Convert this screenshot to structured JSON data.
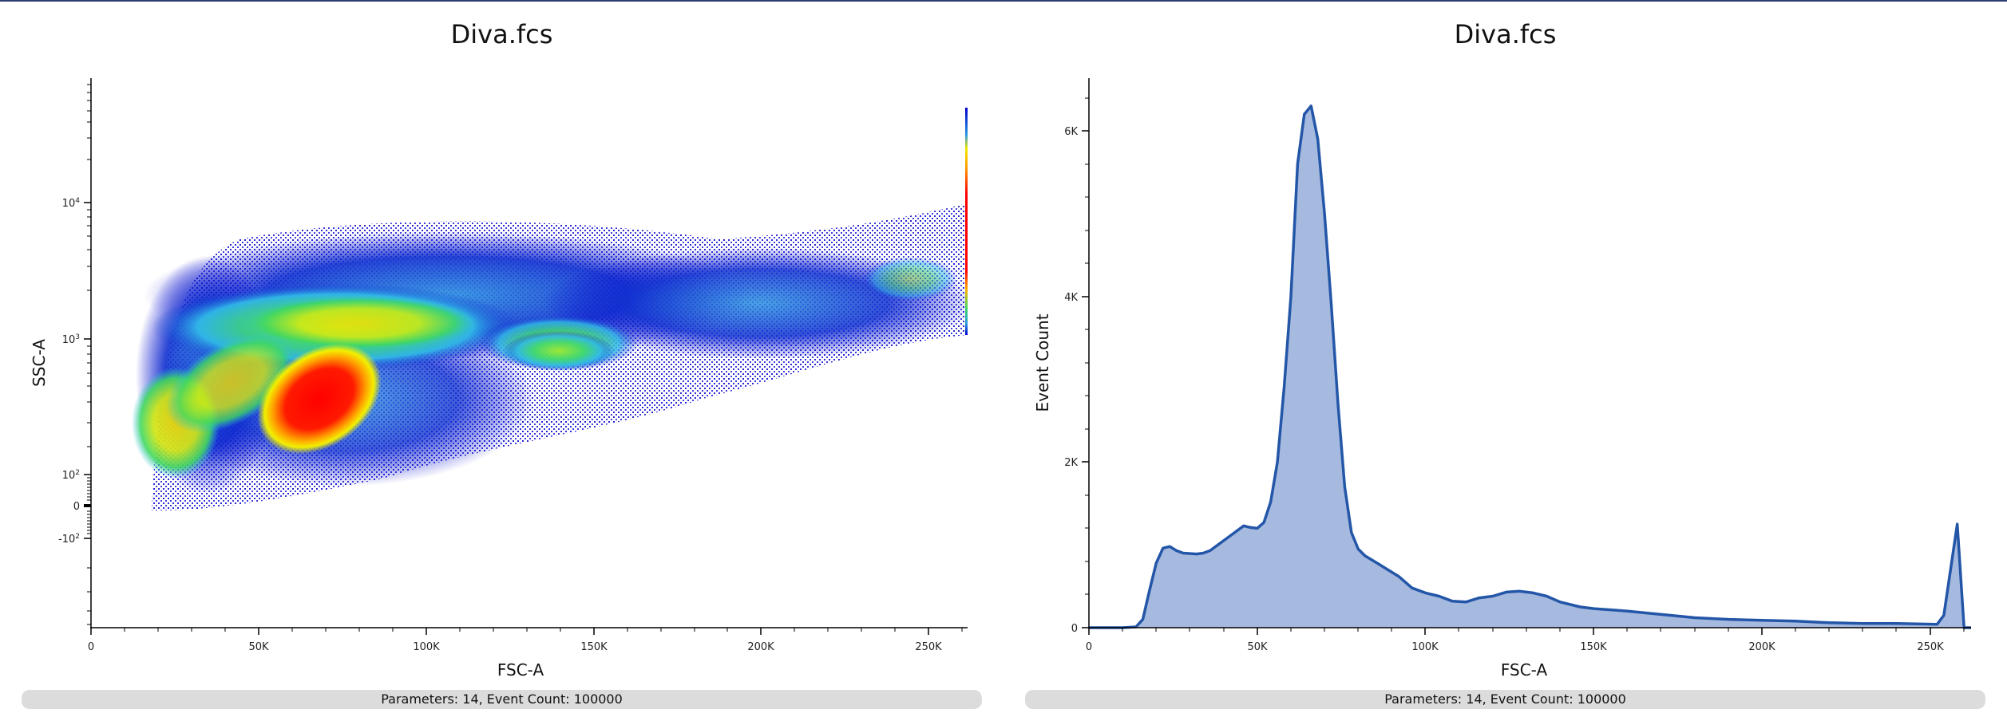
{
  "left_panel": {
    "title": "Diva.fcs",
    "status": "Parameters: 14, Event Count: 100000"
  },
  "right_panel": {
    "title": "Diva.fcs",
    "status": "Parameters: 14, Event Count: 100000"
  },
  "colors": {
    "header_line": "#2c3e73",
    "hist_line": "#2456a8",
    "hist_fill": "#a6badf",
    "status_bar": "#dcdcdc",
    "density": [
      "#0000cc",
      "#2fb4e8",
      "#33dd55",
      "#f0f000",
      "#ff9900",
      "#ff0000"
    ]
  },
  "chart_data": [
    {
      "type": "scatter",
      "title": "Diva.fcs",
      "xlabel": "FSC-A",
      "ylabel": "SSC-A",
      "x_scale": "linear",
      "y_scale": "biexponential",
      "x_ticks": [
        "0",
        "50K",
        "100K",
        "150K",
        "200K",
        "250K"
      ],
      "x_tick_values": [
        0,
        50000,
        100000,
        150000,
        200000,
        250000
      ],
      "xlim": [
        0,
        262144
      ],
      "y_ticks": [
        "10⁴",
        "10³",
        "10²",
        "0",
        "-10²"
      ],
      "y_tick_values": [
        10000,
        1000,
        100,
        0,
        -100
      ],
      "coloring": "density pseudocolor (blue → cyan → green → yellow → red)",
      "populations": [
        {
          "name": "main dense cluster (red)",
          "fsc_center": 70000,
          "ssc_center": 350
        },
        {
          "name": "low FSC debris band (yellow)",
          "fsc_center": 25000,
          "ssc_center": 180
        },
        {
          "name": "upper band (yellow/green)",
          "fsc_center": 80000,
          "ssc_center": 1200
        },
        {
          "name": "secondary cluster (green)",
          "fsc_center": 140000,
          "ssc_center": 900
        },
        {
          "name": "saturated edge events",
          "fsc_center": 262144,
          "ssc_center": 3000
        }
      ],
      "event_count": 100000,
      "parameters": 14
    },
    {
      "type": "area",
      "title": "Diva.fcs",
      "xlabel": "FSC-A",
      "ylabel": "Event Count",
      "x_ticks": [
        "0",
        "50K",
        "100K",
        "150K",
        "200K",
        "250K"
      ],
      "x_tick_values": [
        0,
        50000,
        100000,
        150000,
        200000,
        250000
      ],
      "y_ticks": [
        "0",
        "2K",
        "4K",
        "6K"
      ],
      "y_tick_values": [
        0,
        2000,
        4000,
        6000
      ],
      "xlim": [
        0,
        262144
      ],
      "ylim": [
        0,
        6800
      ],
      "x": [
        0,
        10000,
        14000,
        16000,
        18000,
        20000,
        22000,
        24000,
        26000,
        28000,
        32000,
        34000,
        36000,
        40000,
        44000,
        46000,
        48000,
        50000,
        52000,
        54000,
        56000,
        58000,
        60000,
        62000,
        64000,
        66000,
        68000,
        70000,
        72000,
        74000,
        76000,
        78000,
        80000,
        82000,
        84000,
        86000,
        88000,
        92000,
        96000,
        100000,
        104000,
        108000,
        112000,
        116000,
        120000,
        124000,
        128000,
        132000,
        136000,
        140000,
        146000,
        150000,
        160000,
        170000,
        180000,
        190000,
        200000,
        210000,
        220000,
        230000,
        240000,
        252000,
        254000,
        256000,
        258000,
        260000,
        262144
      ],
      "values": [
        0,
        0,
        10,
        100,
        450,
        780,
        960,
        980,
        930,
        900,
        890,
        900,
        930,
        1050,
        1170,
        1230,
        1210,
        1200,
        1270,
        1520,
        2000,
        2900,
        4000,
        5600,
        6200,
        6300,
        5900,
        5000,
        3900,
        2700,
        1700,
        1150,
        950,
        870,
        820,
        770,
        720,
        620,
        480,
        420,
        380,
        320,
        310,
        360,
        380,
        430,
        440,
        420,
        380,
        310,
        250,
        230,
        200,
        160,
        120,
        100,
        90,
        80,
        60,
        50,
        50,
        40,
        150,
        700,
        1250,
        0,
        0
      ]
    }
  ]
}
